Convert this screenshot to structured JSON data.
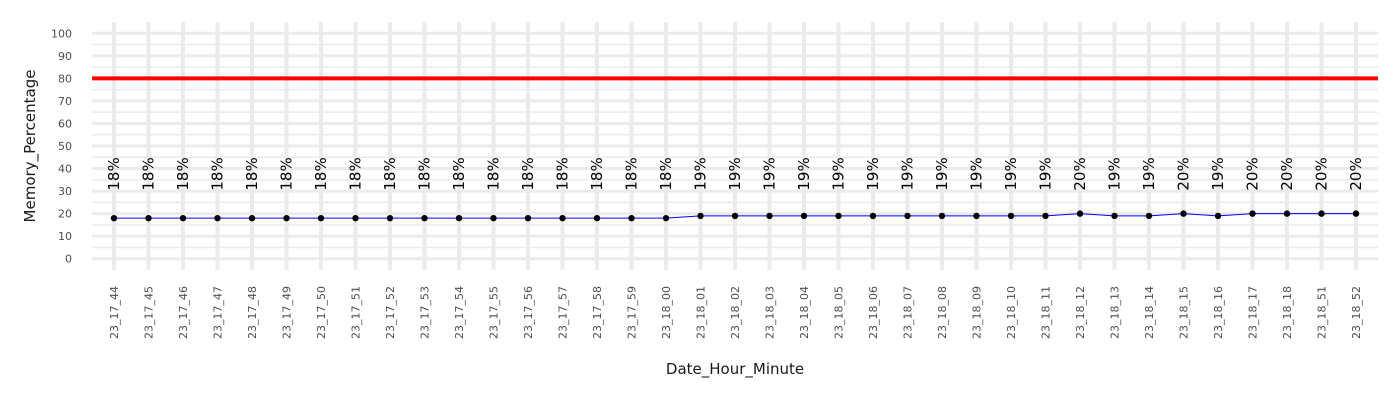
{
  "chart_data": {
    "type": "line",
    "title": "",
    "xlabel": "Date_Hour_Minute",
    "ylabel": "Memory_Percentage",
    "ylim": [
      -5,
      105
    ],
    "y_ticks": [
      0,
      10,
      20,
      30,
      40,
      50,
      60,
      70,
      80,
      90,
      100
    ],
    "grid": true,
    "legend": "none",
    "threshold": {
      "value": 80,
      "color": "#ff0000"
    },
    "colors": {
      "line": "#0000ff",
      "point": "#000000",
      "grid": "#ebebeb",
      "threshold": "#ff0000"
    },
    "categories": [
      "23_17_44",
      "23_17_45",
      "23_17_46",
      "23_17_47",
      "23_17_48",
      "23_17_49",
      "23_17_50",
      "23_17_51",
      "23_17_52",
      "23_17_53",
      "23_17_54",
      "23_17_55",
      "23_17_56",
      "23_17_57",
      "23_17_58",
      "23_17_59",
      "23_18_00",
      "23_18_01",
      "23_18_02",
      "23_18_03",
      "23_18_04",
      "23_18_05",
      "23_18_06",
      "23_18_07",
      "23_18_08",
      "23_18_09",
      "23_18_10",
      "23_18_11",
      "23_18_12",
      "23_18_13",
      "23_18_14",
      "23_18_15",
      "23_18_16",
      "23_18_17",
      "23_18_18",
      "23_18_51",
      "23_18_52"
    ],
    "series": [
      {
        "values": [
          18,
          18,
          18,
          18,
          18,
          18,
          18,
          18,
          18,
          18,
          18,
          18,
          18,
          18,
          18,
          18,
          18,
          19,
          19,
          19,
          19,
          19,
          19,
          19,
          19,
          19,
          19,
          19,
          20,
          19,
          19,
          20,
          19,
          20,
          20,
          20,
          20
        ],
        "labels": [
          "18%",
          "18%",
          "18%",
          "18%",
          "18%",
          "18%",
          "18%",
          "18%",
          "18%",
          "18%",
          "18%",
          "18%",
          "18%",
          "18%",
          "18%",
          "18%",
          "18%",
          "19%",
          "19%",
          "19%",
          "19%",
          "19%",
          "19%",
          "19%",
          "19%",
          "19%",
          "19%",
          "19%",
          "20%",
          "19%",
          "19%",
          "20%",
          "19%",
          "20%",
          "20%",
          "20%",
          "20%"
        ]
      }
    ]
  }
}
